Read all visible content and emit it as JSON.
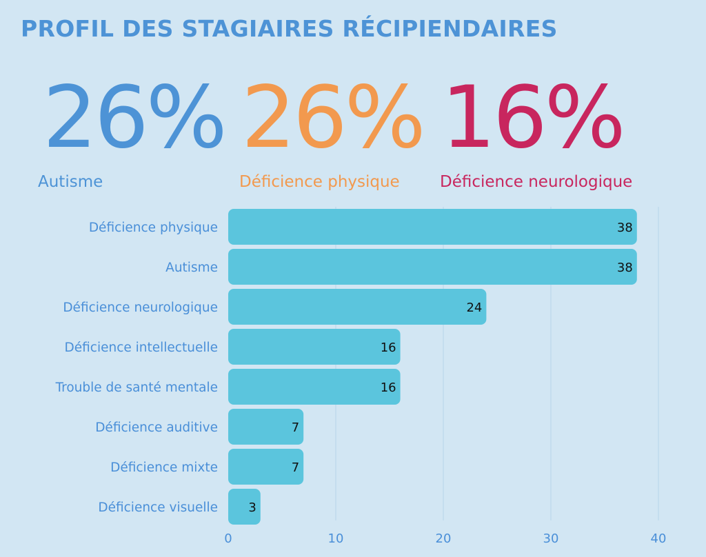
{
  "title": "PROFIL DES STAGIAIRES RÉCIPIENDAIRES",
  "stats": [
    {
      "value": "26%",
      "label": "Autisme",
      "color": "#4d93d6"
    },
    {
      "value": "26%",
      "label": "Déficience physique",
      "color": "#f2994e"
    },
    {
      "value": "16%",
      "label": "Déficience neurologique",
      "color": "#c8265e"
    }
  ],
  "colors": {
    "title": "#4d93d6",
    "bar": "#5bc5dd",
    "category_label": "#4a8fd8",
    "tick_label": "#4a8fd8",
    "data_label": "#111111",
    "grid": "#b7d4e8"
  },
  "chart_data": {
    "type": "bar",
    "orientation": "horizontal",
    "categories": [
      "Déficience physique",
      "Autisme",
      "Déficience neurologique",
      "Déficience intellectuelle",
      "Trouble de santé mentale",
      "Déficience auditive",
      "Déficience mixte",
      "Déficience visuelle"
    ],
    "values": [
      38,
      38,
      24,
      16,
      16,
      7,
      7,
      3
    ],
    "data_labels": [
      "38",
      "38",
      "24",
      "16",
      "16",
      "7",
      "7",
      "3"
    ],
    "xlim": [
      0,
      40
    ],
    "xticks": [
      0,
      10,
      20,
      30,
      40
    ],
    "xtick_labels": [
      "0",
      "10",
      "20",
      "30",
      "40"
    ],
    "title": "",
    "xlabel": "",
    "ylabel": "",
    "grid": true,
    "legend": false
  }
}
